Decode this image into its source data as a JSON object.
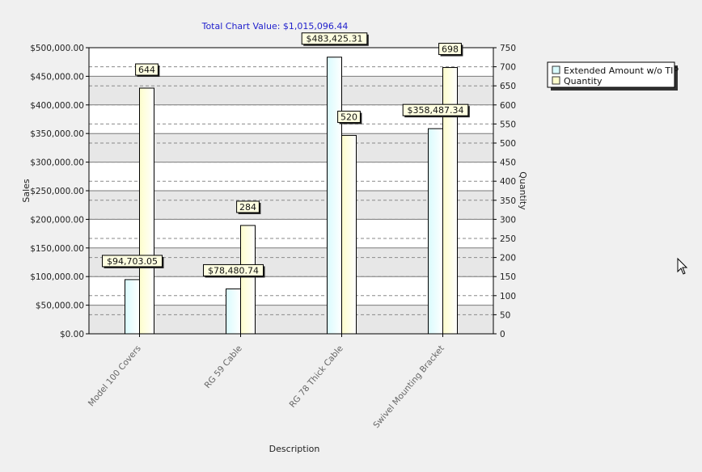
{
  "chart_data": {
    "type": "bar",
    "title": "Total Chart Value: $1,015,096.44",
    "xlabel": "Description",
    "ylabel": "Sales",
    "y2label": "Quantity",
    "categories": [
      "Model 100 Covers",
      "RG 59 Cable",
      "RG 78 Thick Cable",
      "Swivel Mounting Bracket"
    ],
    "series": [
      {
        "name": "Extended Amount w/o TIP",
        "axis": "left",
        "values": [
          94703.05,
          78480.74,
          483425.31,
          358487.34
        ],
        "labels": [
          "$94,703.05",
          "$78,480.74",
          "$483,425.31",
          "$358,487.34"
        ],
        "color": "#d9fbfd"
      },
      {
        "name": "Quantity",
        "axis": "right",
        "values": [
          644,
          284,
          520,
          698
        ],
        "labels": [
          "644",
          "284",
          "520",
          "698"
        ],
        "color": "#fdfdcc"
      }
    ],
    "ylim": [
      0,
      500000
    ],
    "y_ticks": [
      "$0.00",
      "$50,000.00",
      "$100,000.00",
      "$150,000.00",
      "$200,000.00",
      "$250,000.00",
      "$300,000.00",
      "$350,000.00",
      "$400,000.00",
      "$450,000.00",
      "$500,000.00"
    ],
    "y2lim": [
      0,
      750
    ],
    "y2_ticks": [
      "0",
      "50",
      "100",
      "150",
      "200",
      "250",
      "300",
      "350",
      "400",
      "450",
      "500",
      "550",
      "600",
      "650",
      "700",
      "750"
    ],
    "grid": true,
    "legend_position": "top-right"
  }
}
